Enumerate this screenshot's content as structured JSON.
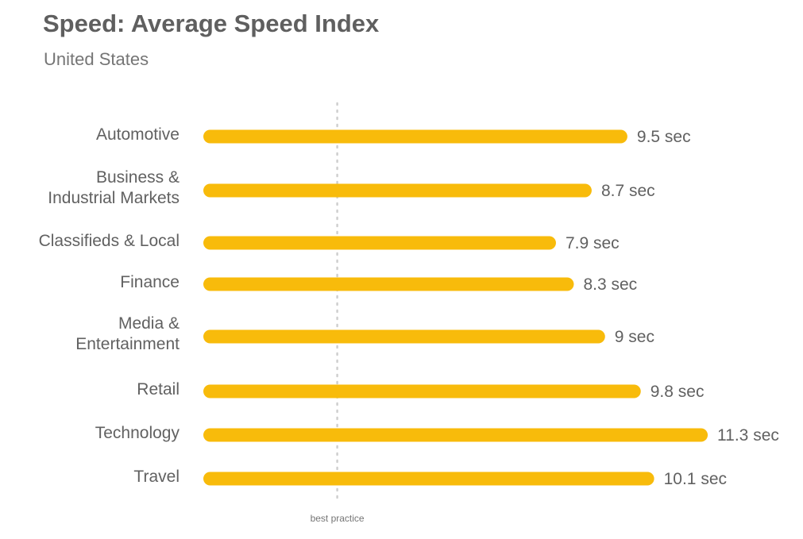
{
  "chart_data": {
    "type": "bar",
    "orientation": "horizontal",
    "title": "Speed: Average Speed Index",
    "subtitle": "United States",
    "categories": [
      "Automotive",
      "Business & Industrial Markets",
      "Classifieds & Local",
      "Finance",
      "Media & Entertainment",
      "Retail",
      "Technology",
      "Travel"
    ],
    "category_lines": [
      [
        "Automotive"
      ],
      [
        "Business &",
        "Industrial Markets"
      ],
      [
        "Classifieds & Local"
      ],
      [
        "Finance"
      ],
      [
        "Media &",
        "Entertainment"
      ],
      [
        "Retail"
      ],
      [
        "Technology"
      ],
      [
        "Travel"
      ]
    ],
    "values": [
      9.5,
      8.7,
      7.9,
      8.3,
      9,
      9.8,
      11.3,
      10.1
    ],
    "value_labels": [
      "9.5 sec",
      "8.7 sec",
      "7.9 sec",
      "8.3 sec",
      "9 sec",
      "9.8 sec",
      "11.3 sec",
      "10.1 sec"
    ],
    "unit": "sec",
    "reference_line": {
      "value": 3,
      "label": "best practice",
      "style": "dotted"
    },
    "xlim": [
      0,
      11.3
    ],
    "grid": false,
    "legend": "none",
    "colors": {
      "bar": "#f8bb0b",
      "reference_line": "#cfcfcf",
      "text": "#616161",
      "title": "#5f5f5f"
    }
  }
}
